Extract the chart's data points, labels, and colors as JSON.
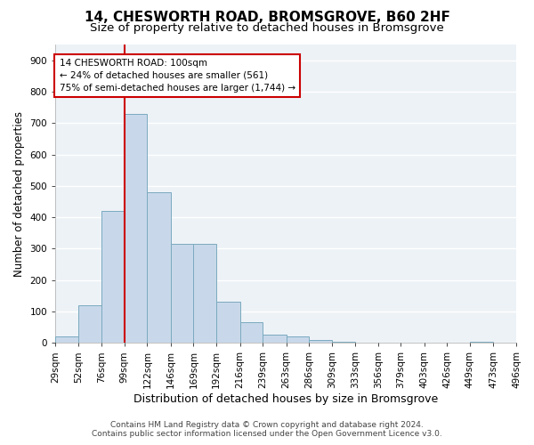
{
  "title1": "14, CHESWORTH ROAD, BROMSGROVE, B60 2HF",
  "title2": "Size of property relative to detached houses in Bromsgrove",
  "xlabel": "Distribution of detached houses by size in Bromsgrove",
  "ylabel": "Number of detached properties",
  "footer1": "Contains HM Land Registry data © Crown copyright and database right 2024.",
  "footer2": "Contains public sector information licensed under the Open Government Licence v3.0.",
  "bin_labels": [
    "29sqm",
    "52sqm",
    "76sqm",
    "99sqm",
    "122sqm",
    "146sqm",
    "169sqm",
    "192sqm",
    "216sqm",
    "239sqm",
    "263sqm",
    "286sqm",
    "309sqm",
    "333sqm",
    "356sqm",
    "379sqm",
    "403sqm",
    "426sqm",
    "449sqm",
    "473sqm",
    "496sqm"
  ],
  "bin_edges": [
    29,
    52,
    76,
    99,
    122,
    146,
    169,
    192,
    216,
    239,
    263,
    286,
    309,
    333,
    356,
    379,
    403,
    426,
    449,
    473,
    496
  ],
  "bar_heights": [
    20,
    120,
    420,
    730,
    480,
    315,
    315,
    130,
    65,
    25,
    20,
    10,
    5,
    0,
    0,
    0,
    0,
    0,
    5,
    0
  ],
  "bar_color": "#c8d8ea",
  "bar_edge_color": "#7baabf",
  "vline_x": 99,
  "vline_color": "#cc0000",
  "annotation_text": "14 CHESWORTH ROAD: 100sqm\n← 24% of detached houses are smaller (561)\n75% of semi-detached houses are larger (1,744) →",
  "annotation_box_color": "#cc0000",
  "ylim": [
    0,
    950
  ],
  "yticks": [
    0,
    100,
    200,
    300,
    400,
    500,
    600,
    700,
    800,
    900
  ],
  "bg_color": "#edf2f7",
  "grid_color": "#ffffff",
  "title1_fontsize": 11,
  "title2_fontsize": 9.5,
  "xlabel_fontsize": 9,
  "ylabel_fontsize": 8.5,
  "tick_fontsize": 7.5,
  "footer_fontsize": 6.5
}
